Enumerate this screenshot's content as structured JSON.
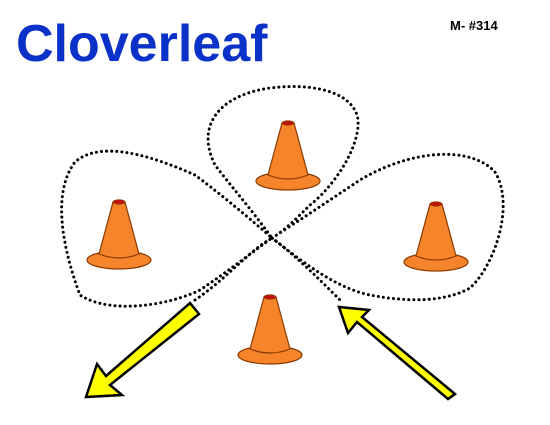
{
  "title": "Cloverleaf",
  "drill_code": "M- #314",
  "colors": {
    "title": "#0a31c8",
    "cone_body": "#f5842a",
    "cone_outline": "#8a3a00",
    "cone_tip": "#c41010",
    "arrow_fill": "#ffff00",
    "arrow_outline": "#000000",
    "path": "#000000"
  },
  "cones": [
    {
      "id": "top"
    },
    {
      "id": "left"
    },
    {
      "id": "right"
    },
    {
      "id": "bottom"
    }
  ],
  "arrows": [
    {
      "id": "entry",
      "direction": "up-left"
    },
    {
      "id": "exit",
      "direction": "down-left"
    }
  ],
  "path": {
    "style": "dotted",
    "shape": "cloverleaf"
  }
}
